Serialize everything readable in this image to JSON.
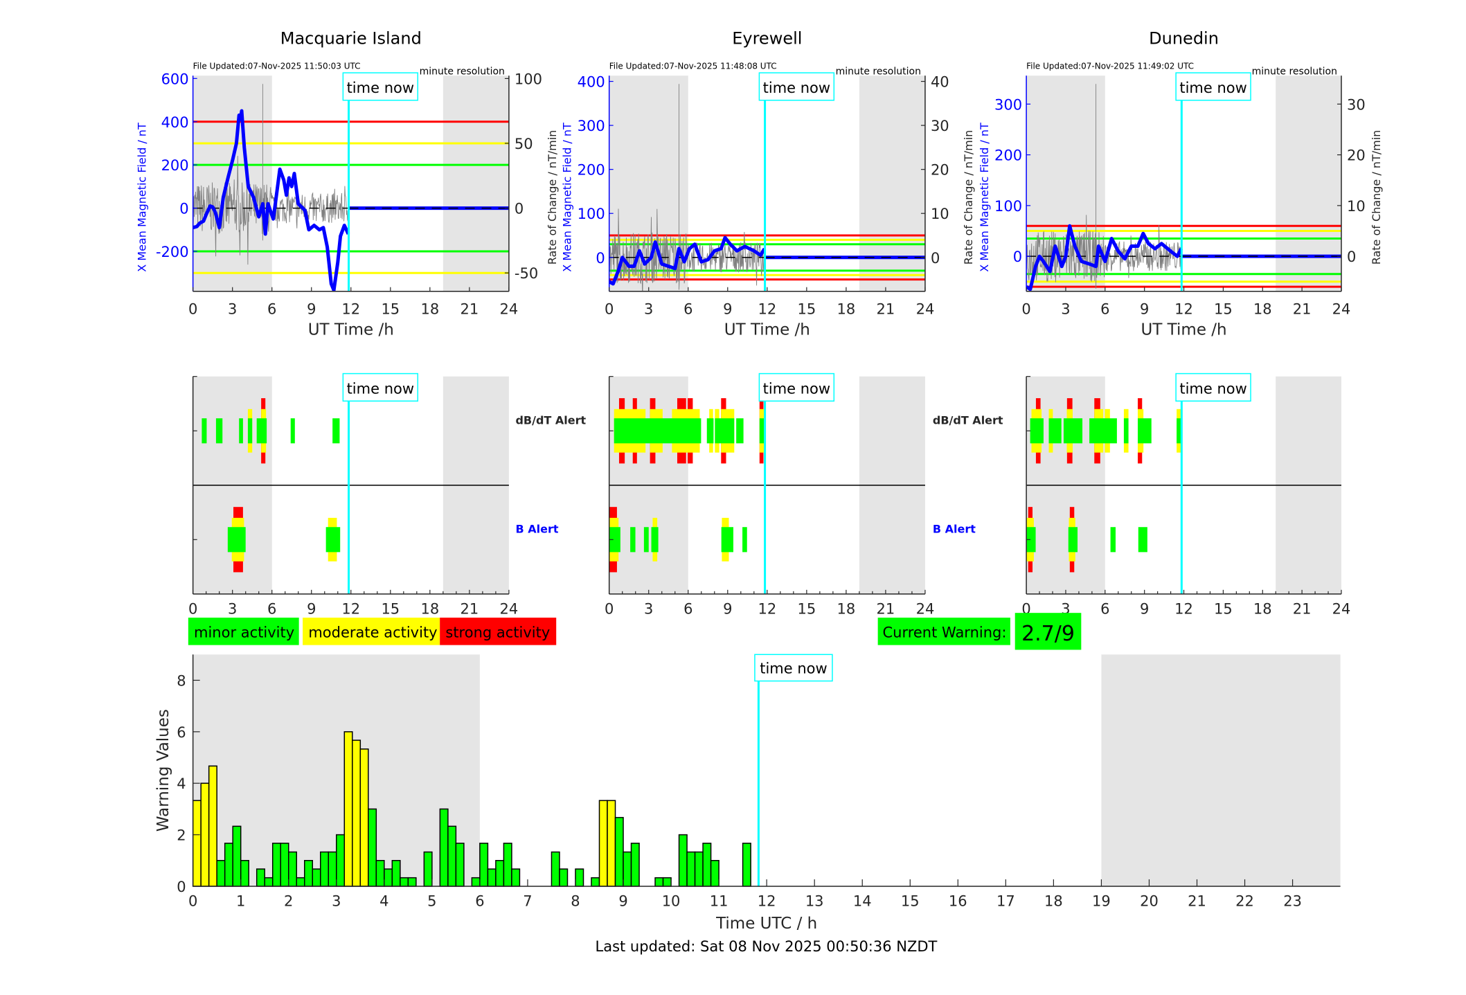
{
  "legend": {
    "minor": "minor activity",
    "moderate": "moderate activity",
    "strong": "strong activity"
  },
  "current_warning": {
    "label": "Current Warning:",
    "value": "2.7/9"
  },
  "footer": {
    "last_updated": "Last updated: Sat 08 Nov 2025 00:50:36 NZDT"
  },
  "colors": {
    "minor": "#00ff00",
    "moderate": "#ffff00",
    "strong": "#ff0000",
    "field_trace": "#0000ff",
    "time_now": "#00ffff",
    "night_shading": "#e5e5e5",
    "rate_trace": "#808080"
  },
  "chart_data": [
    {
      "type": "line",
      "title": "Macquarie Island",
      "file_updated": "File Updated:07-Nov-2025 11:50:03 UTC",
      "resolution": "minute resolution",
      "xlabel": "UT Time /h",
      "ylabel_left": "X Mean Magnetic Field / nT",
      "ylabel_right": "Rate of Change / nT/min",
      "xlim": [
        0,
        24
      ],
      "xticks": [
        "0",
        "3",
        "6",
        "9",
        "12",
        "15",
        "18",
        "21",
        "24"
      ],
      "ylim_left": [
        -385,
        613
      ],
      "yticks_left": [
        "-200",
        "0",
        "200",
        "400",
        "600"
      ],
      "ylim_right": [
        -64.2,
        102.2
      ],
      "yticks_right": [
        "-50",
        "0",
        "50",
        "100"
      ],
      "shaded_hours": [
        [
          0,
          6
        ],
        [
          19,
          24
        ]
      ],
      "time_now": 11.83,
      "time_now_label": "time now",
      "thresholds": [
        {
          "value": 400,
          "level": "strong"
        },
        {
          "value": 300,
          "level": "moderate"
        },
        {
          "value": 200,
          "level": "minor"
        },
        {
          "value": -200,
          "level": "minor"
        },
        {
          "value": -300,
          "level": "moderate"
        }
      ],
      "x_field": [
        [
          0,
          -90
        ],
        [
          0.3,
          -85
        ],
        [
          0.5,
          -70
        ],
        [
          0.8,
          -60
        ],
        [
          1.0,
          -30
        ],
        [
          1.3,
          10
        ],
        [
          1.5,
          5
        ],
        [
          1.7,
          -20
        ],
        [
          2.0,
          -90
        ],
        [
          2.3,
          50
        ],
        [
          2.7,
          150
        ],
        [
          3.0,
          220
        ],
        [
          3.3,
          300
        ],
        [
          3.5,
          430
        ],
        [
          3.6,
          410
        ],
        [
          3.7,
          450
        ],
        [
          3.9,
          280
        ],
        [
          4.2,
          100
        ],
        [
          4.6,
          50
        ],
        [
          5.0,
          -40
        ],
        [
          5.3,
          20
        ],
        [
          5.5,
          -120
        ],
        [
          5.7,
          20
        ],
        [
          6.1,
          -50
        ],
        [
          6.3,
          40
        ],
        [
          6.6,
          180
        ],
        [
          6.9,
          130
        ],
        [
          7.1,
          60
        ],
        [
          7.3,
          140
        ],
        [
          7.5,
          100
        ],
        [
          7.7,
          160
        ],
        [
          8.0,
          20
        ],
        [
          8.5,
          -10
        ],
        [
          8.8,
          -100
        ],
        [
          9.2,
          -80
        ],
        [
          9.6,
          -100
        ],
        [
          9.9,
          -90
        ],
        [
          10.2,
          -180
        ],
        [
          10.5,
          -350
        ],
        [
          10.7,
          -380
        ],
        [
          11.0,
          -250
        ],
        [
          11.2,
          -130
        ],
        [
          11.5,
          -80
        ],
        [
          11.8,
          -120
        ]
      ]
    },
    {
      "type": "line",
      "title": "Eyrewell",
      "file_updated": "File Updated:07-Nov-2025 11:48:08 UTC",
      "resolution": "minute resolution",
      "xlabel": "UT Time /h",
      "ylabel_left": "X Mean Magnetic Field / nT",
      "ylabel_right": "Rate of Change / nT/min",
      "xlim": [
        0,
        24
      ],
      "xticks": [
        "0",
        "3",
        "6",
        "9",
        "12",
        "15",
        "18",
        "21",
        "24"
      ],
      "ylim_left": [
        -77,
        413
      ],
      "yticks_left": [
        "0",
        "100",
        "200",
        "300",
        "400"
      ],
      "ylim_right": [
        -7.7,
        41.3
      ],
      "yticks_right": [
        "0",
        "10",
        "20",
        "30",
        "40"
      ],
      "shaded_hours": [
        [
          0,
          6
        ],
        [
          19,
          24
        ]
      ],
      "time_now": 11.83,
      "time_now_label": "time now",
      "thresholds": [
        {
          "value": 50,
          "level": "strong"
        },
        {
          "value": 40,
          "level": "moderate"
        },
        {
          "value": 30,
          "level": "minor"
        },
        {
          "value": -30,
          "level": "minor"
        },
        {
          "value": -40,
          "level": "moderate"
        },
        {
          "value": -50,
          "level": "strong"
        }
      ],
      "x_field": [
        [
          0,
          -55
        ],
        [
          0.3,
          -60
        ],
        [
          0.7,
          -30
        ],
        [
          1.0,
          0
        ],
        [
          1.5,
          -20
        ],
        [
          1.9,
          -20
        ],
        [
          2.3,
          15
        ],
        [
          2.7,
          -15
        ],
        [
          3.2,
          0
        ],
        [
          3.5,
          35
        ],
        [
          4.0,
          -15
        ],
        [
          4.5,
          -20
        ],
        [
          5.0,
          -25
        ],
        [
          5.3,
          20
        ],
        [
          5.7,
          -10
        ],
        [
          6.1,
          20
        ],
        [
          6.5,
          30
        ],
        [
          7.0,
          -10
        ],
        [
          7.5,
          -5
        ],
        [
          8.0,
          15
        ],
        [
          8.5,
          20
        ],
        [
          8.8,
          45
        ],
        [
          9.2,
          30
        ],
        [
          9.7,
          15
        ],
        [
          10.3,
          25
        ],
        [
          11.0,
          15
        ],
        [
          11.5,
          5
        ],
        [
          11.8,
          20
        ]
      ]
    },
    {
      "type": "line",
      "title": "Dunedin",
      "file_updated": "File Updated:07-Nov-2025 11:49:02 UTC",
      "resolution": "minute resolution",
      "xlabel": "UT Time /h",
      "ylabel_left": "X Mean Magnetic Field / nT",
      "ylabel_right": "Rate of Change / nT/min",
      "xlim": [
        0,
        24
      ],
      "xticks": [
        "0",
        "3",
        "6",
        "9",
        "12",
        "15",
        "18",
        "21",
        "24"
      ],
      "ylim_left": [
        -69,
        356
      ],
      "yticks_left": [
        "0",
        "100",
        "200",
        "300"
      ],
      "ylim_right": [
        -6.9,
        35.6
      ],
      "yticks_right": [
        "0",
        "10",
        "20",
        "30"
      ],
      "shaded_hours": [
        [
          0,
          6
        ],
        [
          19,
          24
        ]
      ],
      "time_now": 11.83,
      "time_now_label": "time now",
      "thresholds": [
        {
          "value": 60,
          "level": "strong"
        },
        {
          "value": 50,
          "level": "moderate"
        },
        {
          "value": 35,
          "level": "minor"
        },
        {
          "value": -35,
          "level": "minor"
        },
        {
          "value": -50,
          "level": "moderate"
        },
        {
          "value": -60,
          "level": "strong"
        }
      ],
      "x_field": [
        [
          0,
          -60
        ],
        [
          0.3,
          -65
        ],
        [
          0.7,
          -20
        ],
        [
          1.0,
          0
        ],
        [
          1.3,
          -10
        ],
        [
          1.8,
          -30
        ],
        [
          2.2,
          20
        ],
        [
          2.7,
          -20
        ],
        [
          3.0,
          0
        ],
        [
          3.3,
          60
        ],
        [
          3.7,
          20
        ],
        [
          4.2,
          -10
        ],
        [
          4.8,
          -15
        ],
        [
          5.3,
          -20
        ],
        [
          5.5,
          20
        ],
        [
          6.0,
          -10
        ],
        [
          6.5,
          35
        ],
        [
          7.0,
          10
        ],
        [
          7.5,
          -5
        ],
        [
          8.0,
          20
        ],
        [
          8.5,
          20
        ],
        [
          8.9,
          45
        ],
        [
          9.3,
          25
        ],
        [
          9.8,
          15
        ],
        [
          10.3,
          25
        ],
        [
          11.0,
          10
        ],
        [
          11.5,
          0
        ],
        [
          11.8,
          15
        ]
      ]
    },
    {
      "type": "alert-timeline",
      "station": "Macquarie Island",
      "xticks": [
        "0",
        "3",
        "6",
        "9",
        "12",
        "15",
        "18",
        "21",
        "24"
      ],
      "xlim": [
        0,
        24
      ],
      "shaded_hours": [
        [
          0,
          6
        ],
        [
          19,
          24
        ]
      ],
      "time_now": 11.83,
      "time_now_label": "time now",
      "dbdt_label": "",
      "b_label": "",
      "dbdt": {
        "minor": [
          [
            0.67,
            1.04
          ],
          [
            1.75,
            2.24
          ],
          [
            3.5,
            3.8
          ],
          [
            4.17,
            4.5
          ],
          [
            4.84,
            5.6
          ],
          [
            7.42,
            7.74
          ],
          [
            10.6,
            11.14
          ]
        ],
        "moderate": [
          [
            4.17,
            4.5
          ],
          [
            5.18,
            5.55
          ]
        ],
        "strong": [
          [
            5.18,
            5.5
          ]
        ]
      },
      "b": {
        "minor": [
          [
            2.64,
            4.0
          ],
          [
            10.1,
            11.18
          ]
        ],
        "moderate": [
          [
            2.95,
            3.88
          ],
          [
            10.26,
            10.93
          ]
        ],
        "strong": [
          [
            3.07,
            3.8
          ]
        ]
      }
    },
    {
      "type": "alert-timeline",
      "station": "Eyrewell",
      "xticks": [
        "0",
        "3",
        "6",
        "9",
        "12",
        "15",
        "18",
        "21",
        "24"
      ],
      "xlim": [
        0,
        24
      ],
      "shaded_hours": [
        [
          0,
          6
        ],
        [
          19,
          24
        ]
      ],
      "time_now": 11.83,
      "time_now_label": "time now",
      "dbdt_label": "dB/dT Alert",
      "b_label": "B Alert",
      "dbdt": {
        "minor": [
          [
            0.37,
            6.98
          ],
          [
            7.42,
            7.93
          ],
          [
            8.03,
            9.5
          ],
          [
            9.65,
            10.2
          ],
          [
            11.42,
            11.75
          ]
        ],
        "moderate": [
          [
            0.37,
            2.76
          ],
          [
            3.1,
            4.06
          ],
          [
            4.77,
            6.88
          ],
          [
            7.6,
            7.89
          ],
          [
            8.03,
            8.36
          ],
          [
            8.5,
            9.5
          ],
          [
            11.42,
            11.75
          ]
        ],
        "strong": [
          [
            0.75,
            1.18
          ],
          [
            1.79,
            2.11
          ],
          [
            3.1,
            3.51
          ],
          [
            5.17,
            5.84
          ],
          [
            5.96,
            6.35
          ],
          [
            8.5,
            8.88
          ],
          [
            11.42,
            11.72
          ]
        ]
      },
      "b": {
        "minor": [
          [
            0,
            0.85
          ],
          [
            1.6,
            1.99
          ],
          [
            2.64,
            3.0
          ],
          [
            3.2,
            3.73
          ],
          [
            8.52,
            9.43
          ],
          [
            10.12,
            10.47
          ]
        ],
        "moderate": [
          [
            0,
            0.71
          ],
          [
            3.3,
            3.65
          ],
          [
            8.56,
            9.09
          ]
        ],
        "strong": [
          [
            0,
            0.59
          ]
        ]
      }
    },
    {
      "type": "alert-timeline",
      "station": "Dunedin",
      "xticks": [
        "0",
        "3",
        "6",
        "9",
        "12",
        "15",
        "18",
        "21",
        "24"
      ],
      "xlim": [
        0,
        24
      ],
      "shaded_hours": [
        [
          0,
          6
        ],
        [
          19,
          24
        ]
      ],
      "time_now": 11.83,
      "time_now_label": "time now",
      "dbdt_label": "dB/dT Alert",
      "b_label": "B Alert",
      "dbdt": {
        "minor": [
          [
            0.29,
            1.31
          ],
          [
            1.71,
            2.67
          ],
          [
            2.84,
            4.27
          ],
          [
            4.8,
            6.9
          ],
          [
            7.43,
            7.78
          ],
          [
            8.49,
            9.53
          ],
          [
            11.45,
            11.78
          ]
        ],
        "moderate": [
          [
            0.39,
            1.16
          ],
          [
            1.71,
            2.02
          ],
          [
            3.08,
            3.53
          ],
          [
            5.18,
            5.86
          ],
          [
            5.98,
            6.37
          ],
          [
            7.43,
            7.78
          ],
          [
            8.49,
            8.92
          ],
          [
            11.45,
            11.78
          ]
        ],
        "strong": [
          [
            0.73,
            1.08
          ],
          [
            3.1,
            3.51
          ],
          [
            5.18,
            5.63
          ],
          [
            8.49,
            8.82
          ]
        ]
      },
      "b": {
        "minor": [
          [
            0,
            0.71
          ],
          [
            3.2,
            3.9
          ],
          [
            6.41,
            6.8
          ],
          [
            8.53,
            9.22
          ]
        ],
        "moderate": [
          [
            0,
            0.57
          ],
          [
            3.24,
            3.73
          ]
        ],
        "strong": [
          [
            0.14,
            0.47
          ],
          [
            3.31,
            3.65
          ]
        ]
      }
    },
    {
      "type": "bar",
      "xlabel": "Time UTC / h",
      "ylabel": "Warning Values",
      "xlim": [
        0,
        24
      ],
      "ylim": [
        0,
        9
      ],
      "xticks": [
        "0",
        "1",
        "2",
        "3",
        "4",
        "5",
        "6",
        "7",
        "8",
        "9",
        "10",
        "11",
        "12",
        "13",
        "14",
        "15",
        "16",
        "17",
        "18",
        "19",
        "20",
        "21",
        "22",
        "23"
      ],
      "yticks": [
        "0",
        "2",
        "4",
        "6",
        "8"
      ],
      "bin_hours": 0.1667,
      "moderate_above": 3,
      "shaded_hours": [
        [
          0,
          6
        ],
        [
          19,
          24
        ]
      ],
      "time_now": 11.83,
      "time_now_label": "time now",
      "values": [
        3.33,
        4.0,
        4.67,
        1.0,
        1.67,
        2.33,
        1.0,
        0,
        0.67,
        0.33,
        1.67,
        1.67,
        1.33,
        0.33,
        1.0,
        0.67,
        1.33,
        1.33,
        2.0,
        6.0,
        5.67,
        5.33,
        3.0,
        1.0,
        0.67,
        1.0,
        0.33,
        0.33,
        0,
        1.33,
        0,
        3.0,
        2.33,
        1.67,
        0,
        0.33,
        1.67,
        0.67,
        1.0,
        1.67,
        0.67,
        0,
        0,
        0,
        0,
        1.33,
        0.67,
        0,
        0.67,
        0,
        0.33,
        3.33,
        3.33,
        2.67,
        1.33,
        1.67,
        0,
        0,
        0.33,
        0.33,
        0,
        2.0,
        1.33,
        1.33,
        1.67,
        1.0,
        0,
        0,
        0,
        1.67
      ]
    }
  ]
}
